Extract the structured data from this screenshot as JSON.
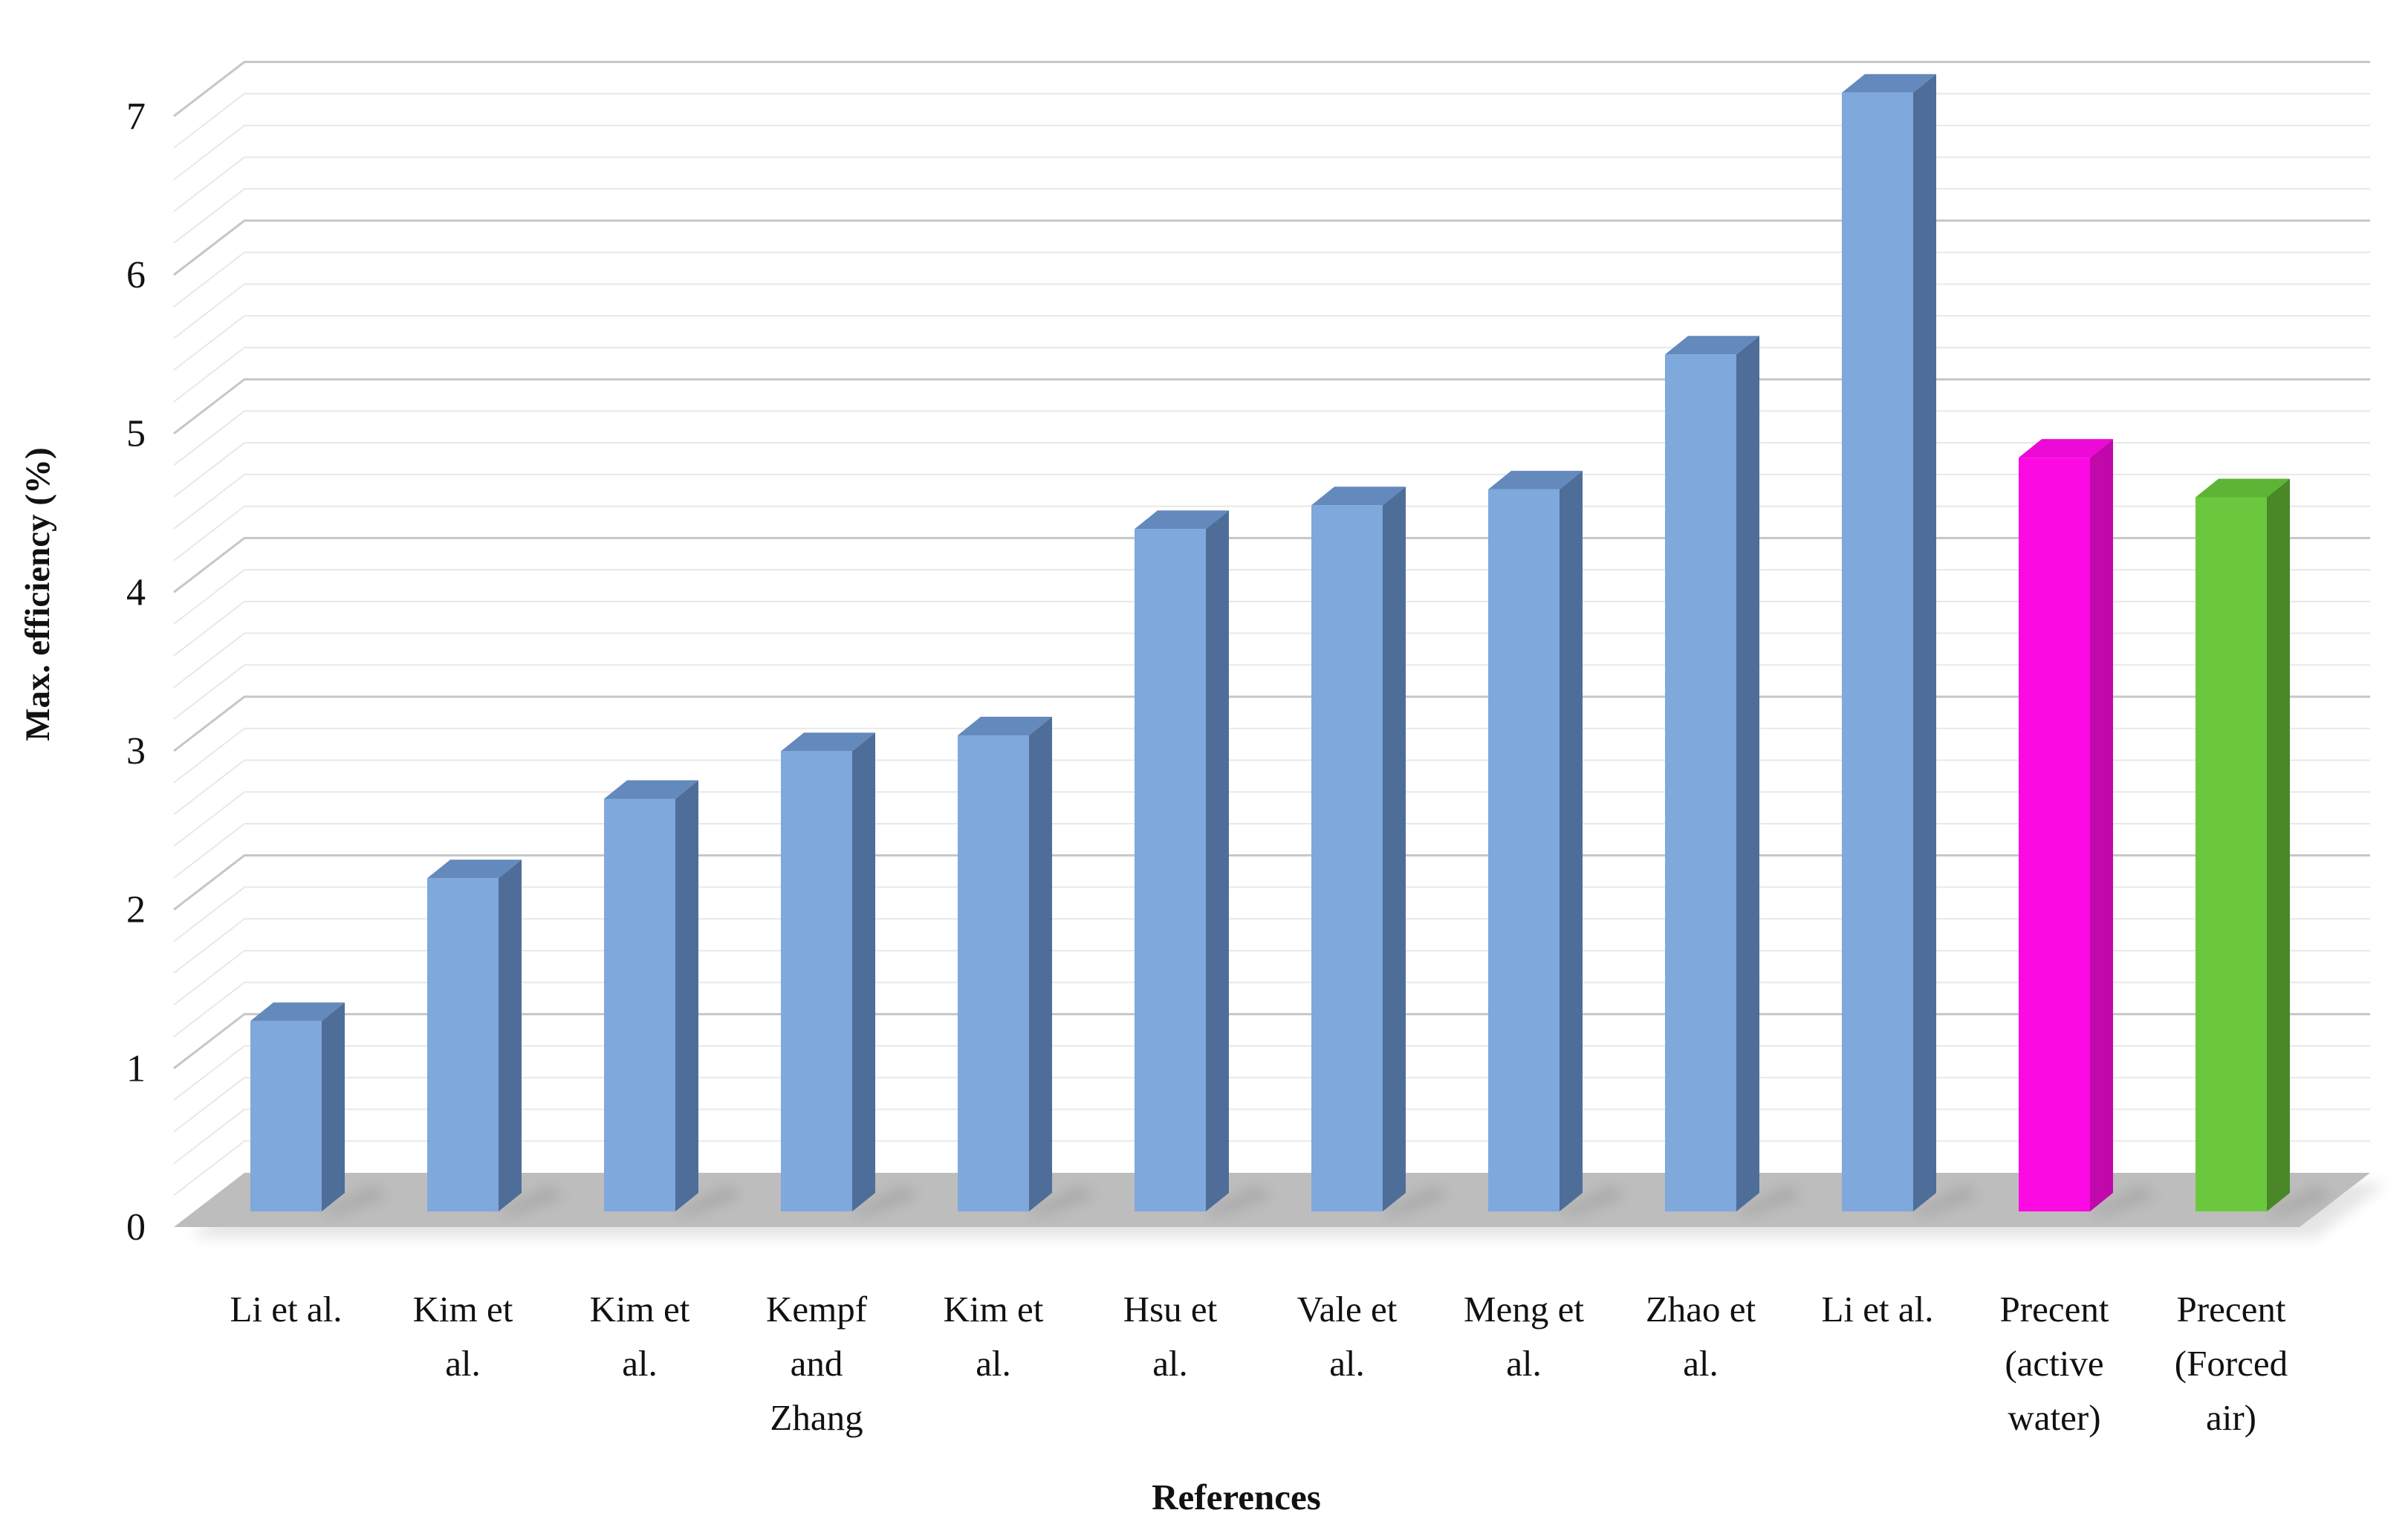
{
  "figure": {
    "background": "#FFFFFF"
  },
  "chart_data": {
    "type": "bar",
    "style": "3d-clustered-column",
    "title": "",
    "xlabel": "References",
    "ylabel": "Max. efficiency (%)",
    "ylim": [
      0,
      7
    ],
    "ytick_step": 1,
    "yminor_step": 0.2,
    "grid": true,
    "legend_position": "none",
    "yticks": [
      0,
      1,
      2,
      3,
      4,
      5,
      6,
      7
    ],
    "categories": [
      "Li et al.",
      "Kim et al.",
      "Kim et al.",
      "Kempf and Zhang",
      "Kim et al.",
      "Hsu et al.",
      "Vale et al.",
      "Meng et al.",
      "Zhao et al.",
      "Li et al.",
      "Precent (active water)",
      "Precent (Forced air)"
    ],
    "category_lines": [
      [
        "Li et al."
      ],
      [
        "Kim et",
        "al."
      ],
      [
        "Kim et",
        "al."
      ],
      [
        "Kempf",
        "and",
        "Zhang"
      ],
      [
        "Kim et",
        "al."
      ],
      [
        "Hsu et",
        "al."
      ],
      [
        "Vale et",
        "al."
      ],
      [
        "Meng et",
        "al."
      ],
      [
        "Zhao et",
        "al."
      ],
      [
        "Li et al."
      ],
      [
        "Precent",
        "(active",
        "water)"
      ],
      [
        "Precent",
        "(Forced",
        "air)"
      ]
    ],
    "values": [
      1.2,
      2.1,
      2.6,
      2.9,
      3.0,
      4.3,
      4.45,
      4.55,
      5.4,
      7.05,
      4.75,
      4.5
    ],
    "bar_colors": [
      "blue",
      "blue",
      "blue",
      "blue",
      "blue",
      "blue",
      "blue",
      "blue",
      "blue",
      "blue",
      "magenta",
      "green"
    ],
    "palette": {
      "blue": {
        "front": "#7FA8DC",
        "top": "#6389BD",
        "side": "#4F6D99"
      },
      "magenta": {
        "front": "#FB0AE3",
        "top": "#ED09D6",
        "side": "#C108AB"
      },
      "green": {
        "front": "#6BC83E",
        "top": "#5EB434",
        "side": "#4A8827"
      }
    },
    "floor_color": "#BDBDBD",
    "gridline_major_color": "#C6C6C6",
    "gridline_minor_color": "#E8E8E8",
    "text_color": "#111111"
  }
}
